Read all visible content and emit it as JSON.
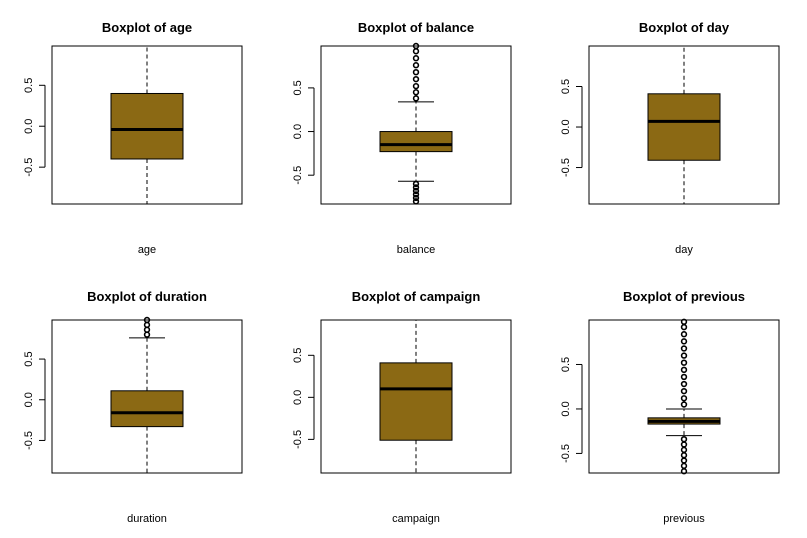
{
  "colors": {
    "box_fill": "#8B6914",
    "line": "#000000",
    "background": "#ffffff"
  },
  "chart_data": [
    {
      "type": "boxplot",
      "title": "Boxplot of age",
      "xlabel": "age",
      "yticks": [
        -0.5,
        0.0,
        0.5
      ],
      "ytick_labels": [
        "-0.5",
        "0.0",
        "0.5"
      ],
      "ylim": [
        -0.95,
        0.98
      ],
      "q1": -0.4,
      "median": -0.04,
      "q3": 0.4,
      "whisker_low": -0.95,
      "whisker_high": 0.98,
      "whisker_caps": false,
      "outliers_low": [],
      "outliers_high": []
    },
    {
      "type": "boxplot",
      "title": "Boxplot of balance",
      "xlabel": "balance",
      "yticks": [
        -0.5,
        0.0,
        0.5
      ],
      "ytick_labels": [
        "-0.5",
        "0.0",
        "0.5"
      ],
      "ylim": [
        -0.83,
        0.98
      ],
      "q1": -0.23,
      "median": -0.15,
      "q3": 0.0,
      "whisker_low": -0.57,
      "whisker_high": 0.34,
      "whisker_caps": true,
      "outliers_low": [
        -0.6,
        -0.64,
        -0.68,
        -0.72,
        -0.76,
        -0.8
      ],
      "outliers_high": [
        0.38,
        0.45,
        0.52,
        0.6,
        0.68,
        0.76,
        0.84,
        0.92,
        0.98
      ]
    },
    {
      "type": "boxplot",
      "title": "Boxplot of day",
      "xlabel": "day",
      "yticks": [
        -0.5,
        0.0,
        0.5
      ],
      "ytick_labels": [
        "-0.5",
        "0.0",
        "0.5"
      ],
      "ylim": [
        -0.95,
        1.0
      ],
      "q1": -0.41,
      "median": 0.07,
      "q3": 0.41,
      "whisker_low": -0.95,
      "whisker_high": 1.0,
      "whisker_caps": false,
      "outliers_low": [],
      "outliers_high": []
    },
    {
      "type": "boxplot",
      "title": "Boxplot of duration",
      "xlabel": "duration",
      "yticks": [
        -0.5,
        0.0,
        0.5
      ],
      "ytick_labels": [
        "-0.5",
        "0.0",
        "0.5"
      ],
      "ylim": [
        -0.9,
        0.98
      ],
      "q1": -0.33,
      "median": -0.16,
      "q3": 0.11,
      "whisker_low": -0.9,
      "whisker_high": 0.76,
      "whisker_caps": true,
      "outliers_low": [],
      "outliers_high": [
        0.8,
        0.86,
        0.92,
        0.98
      ]
    },
    {
      "type": "boxplot",
      "title": "Boxplot of campaign",
      "xlabel": "campaign",
      "yticks": [
        -0.5,
        0.0,
        0.5
      ],
      "ytick_labels": [
        "-0.5",
        "0.0",
        "0.5"
      ],
      "ylim": [
        -0.9,
        0.92
      ],
      "q1": -0.51,
      "median": 0.1,
      "q3": 0.41,
      "whisker_low": -0.9,
      "whisker_high": 0.92,
      "whisker_caps": false,
      "outliers_low": [],
      "outliers_high": []
    },
    {
      "type": "boxplot",
      "title": "Boxplot of previous",
      "xlabel": "previous",
      "yticks": [
        -0.5,
        0.0,
        0.5
      ],
      "ytick_labels": [
        "-0.5",
        "0.0",
        "0.5"
      ],
      "ylim": [
        -0.72,
        1.0
      ],
      "q1": -0.17,
      "median": -0.14,
      "q3": -0.1,
      "whisker_low": -0.3,
      "whisker_high": 0.0,
      "whisker_caps": true,
      "outliers_low": [
        -0.34,
        -0.4,
        -0.46,
        -0.52,
        -0.58,
        -0.64,
        -0.7
      ],
      "outliers_high": [
        0.05,
        0.12,
        0.2,
        0.28,
        0.36,
        0.44,
        0.52,
        0.6,
        0.68,
        0.76,
        0.84,
        0.92,
        0.98
      ]
    }
  ]
}
